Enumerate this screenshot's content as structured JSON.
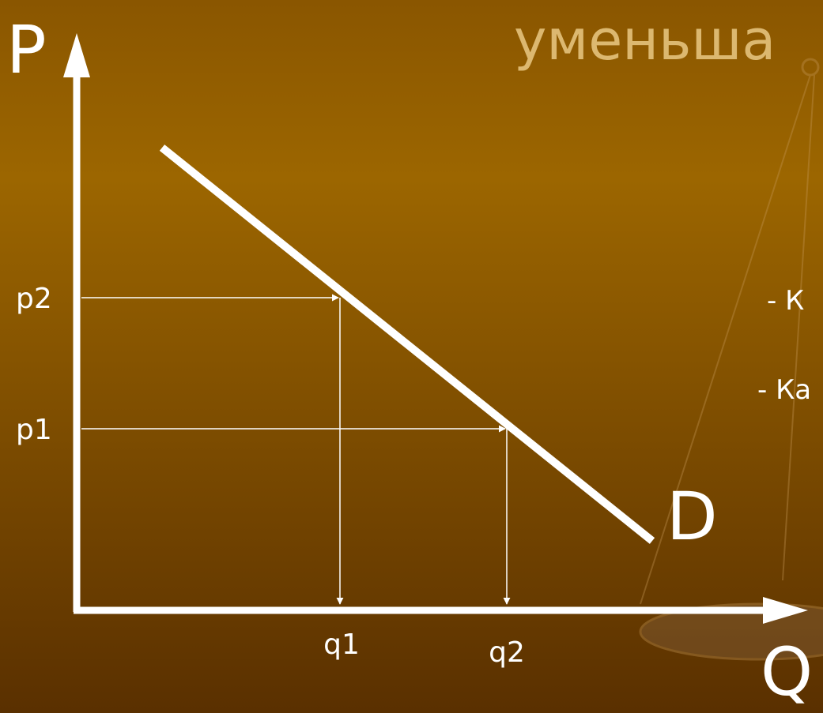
{
  "title": "уменьша",
  "axes": {
    "y_label": "P",
    "x_label": "Q"
  },
  "curve": {
    "label": "D"
  },
  "price_labels": [
    "p2",
    "p1"
  ],
  "quantity_labels": [
    "q1",
    "q2"
  ],
  "side_text": [
    "- К",
    "- Ка"
  ]
}
